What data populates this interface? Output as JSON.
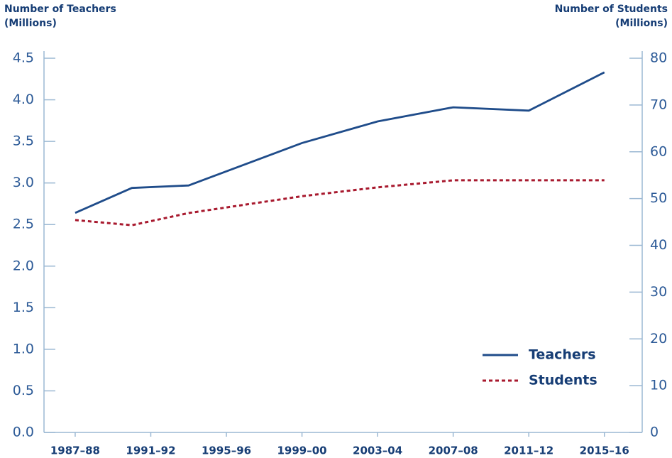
{
  "chart_data": {
    "type": "line",
    "y_label": [
      "Number of Teachers",
      "(Millions)"
    ],
    "y2_label": [
      "Number of Students",
      "(Millions)"
    ],
    "x": [
      1987,
      1990,
      1993,
      1999,
      2003,
      2007,
      2011,
      2015
    ],
    "xlim": [
      1985.35,
      2017
    ],
    "xticks": [
      {
        "value": 1987,
        "label": "1987–88"
      },
      {
        "value": 1991,
        "label": "1991–92"
      },
      {
        "value": 1995,
        "label": "1995–96"
      },
      {
        "value": 1999,
        "label": "1999–00"
      },
      {
        "value": 2003,
        "label": "2003–04"
      },
      {
        "value": 2007,
        "label": "2007–08"
      },
      {
        "value": 2011,
        "label": "2011–12"
      },
      {
        "value": 2015,
        "label": "2015–16"
      }
    ],
    "ylim": [
      0,
      4.5
    ],
    "yticks": [
      {
        "value": 0,
        "label": "0.0"
      },
      0.5,
      {
        "value": 1,
        "label": "1.0"
      },
      1.5,
      {
        "value": 2,
        "label": "2.0"
      },
      2.5,
      {
        "value": 3,
        "label": "3.0"
      },
      3.5,
      {
        "value": 4,
        "label": "4.0"
      },
      4.5
    ],
    "y2lim": [
      0,
      80
    ],
    "y2ticks": [
      0,
      10,
      20,
      30,
      40,
      50,
      60,
      70,
      80
    ],
    "legend": "lower-right",
    "series": [
      {
        "name": "Teachers",
        "color": "#1f4c8a",
        "dash": "solid",
        "values": [
          2.64,
          2.94,
          2.97,
          3.48,
          3.74,
          3.91,
          3.87,
          4.33
        ]
      },
      {
        "name": "Students",
        "color": "#a8192e",
        "dash": "dotted",
        "axis": "y2",
        "values": [
          45.4,
          44.3,
          46.9,
          50.5,
          52.4,
          53.9,
          53.9,
          53.9
        ]
      }
    ]
  }
}
